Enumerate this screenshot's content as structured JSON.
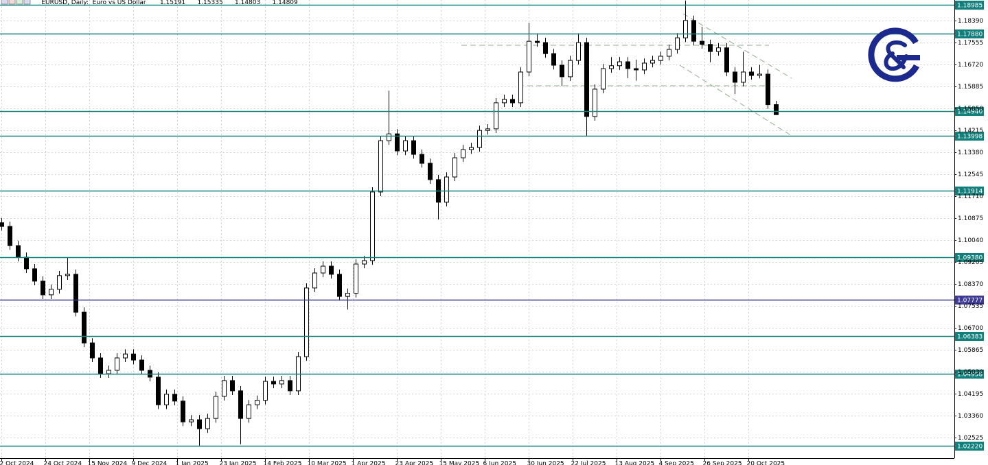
{
  "chart_data": {
    "type": "candlestick",
    "title": "EURUSD, Daily:  Euro vs US Dollar",
    "x": [
      0,
      3,
      6,
      9,
      12,
      15,
      18,
      21,
      24,
      27,
      30,
      33,
      36,
      39,
      42,
      45,
      48,
      51,
      54,
      57,
      60,
      63,
      66,
      69,
      72,
      75,
      78,
      81,
      84,
      87,
      90,
      93,
      96,
      99,
      102,
      105,
      108,
      111,
      114,
      117,
      120,
      123,
      126,
      129,
      132,
      135,
      138,
      141,
      144,
      147,
      150,
      153,
      156,
      159,
      162,
      165,
      168,
      171,
      174,
      177,
      180,
      183,
      186,
      189,
      192,
      195,
      198,
      201,
      204,
      207,
      210,
      213,
      216,
      219,
      222,
      225,
      228,
      231,
      234,
      237,
      240,
      243,
      246,
      249,
      252,
      255,
      258,
      261,
      264,
      267,
      270,
      273,
      276,
      279,
      282
    ],
    "open": [
      1.107,
      1.1056,
      1.0983,
      1.0939,
      1.0895,
      1.0848,
      1.0796,
      1.0817,
      1.0869,
      1.0874,
      1.073,
      1.0613,
      1.0556,
      1.0496,
      1.0509,
      1.0556,
      1.0571,
      1.0548,
      1.0509,
      1.0483,
      1.0378,
      1.0418,
      1.0392,
      1.0313,
      1.0321,
      1.0287,
      1.0326,
      1.041,
      1.047,
      1.0431,
      1.0326,
      1.0378,
      1.0395,
      1.0467,
      1.0457,
      1.047,
      1.0431,
      1.0561,
      1.0822,
      1.0879,
      1.0905,
      1.0874,
      1.079,
      1.0802,
      1.0913,
      1.0926,
      1.1187,
      1.1382,
      1.1408,
      1.1343,
      1.1382,
      1.133,
      1.1296,
      1.1234,
      1.1148,
      1.1244,
      1.1317,
      1.1348,
      1.1356,
      1.1421,
      1.1427,
      1.1526,
      1.1539,
      1.1526,
      1.1643,
      1.176,
      1.1755,
      1.1713,
      1.1669,
      1.1625,
      1.1687,
      1.1755,
      1.1474,
      1.1578,
      1.1656,
      1.1667,
      1.1682,
      1.1656,
      1.1651,
      1.1677,
      1.1687,
      1.1703,
      1.1729,
      1.1773,
      1.1839,
      1.176,
      1.1748,
      1.1721,
      1.1735,
      1.1643,
      1.1604,
      1.1643,
      1.163,
      1.1635,
      1.15191
    ],
    "high": [
      1.1088,
      1.1074,
      1.1001,
      1.0957,
      1.0913,
      1.0866,
      1.0835,
      1.0887,
      1.0937,
      1.0892,
      1.0748,
      1.0631,
      1.0574,
      1.0527,
      1.0574,
      1.0589,
      1.0589,
      1.0566,
      1.0527,
      1.0501,
      1.0436,
      1.0436,
      1.041,
      1.0339,
      1.0339,
      1.0344,
      1.0428,
      1.0488,
      1.0488,
      1.0449,
      1.0396,
      1.0413,
      1.0485,
      1.0485,
      1.0488,
      1.0488,
      1.0579,
      1.084,
      1.0897,
      1.0923,
      1.0923,
      1.0892,
      1.082,
      1.0931,
      1.0944,
      1.1205,
      1.14,
      1.1572,
      1.1426,
      1.14,
      1.14,
      1.1348,
      1.1314,
      1.1252,
      1.1262,
      1.1335,
      1.1366,
      1.1374,
      1.1439,
      1.1445,
      1.1544,
      1.1557,
      1.1557,
      1.1661,
      1.183,
      1.179,
      1.1773,
      1.1731,
      1.1687,
      1.1705,
      1.179,
      1.1773,
      1.1596,
      1.1674,
      1.17,
      1.17,
      1.17,
      1.169,
      1.1695,
      1.1705,
      1.1721,
      1.1747,
      1.1791,
      1.1915,
      1.1857,
      1.1815,
      1.1766,
      1.1753,
      1.1753,
      1.1661,
      1.172,
      1.1661,
      1.167,
      1.1653,
      1.15335
    ],
    "low": [
      1.104,
      1.0967,
      1.0923,
      1.0879,
      1.0832,
      1.078,
      1.078,
      1.0801,
      1.0853,
      1.0714,
      1.0597,
      1.054,
      1.048,
      1.048,
      1.0493,
      1.054,
      1.0532,
      1.0493,
      1.0467,
      1.0362,
      1.0362,
      1.0376,
      1.0297,
      1.0297,
      1.0222,
      1.0271,
      1.031,
      1.0394,
      1.0415,
      1.0228,
      1.031,
      1.0362,
      1.0379,
      1.0441,
      1.0441,
      1.0415,
      1.0415,
      1.0545,
      1.0806,
      1.0863,
      1.0858,
      1.0774,
      1.074,
      1.0786,
      1.0897,
      1.091,
      1.1171,
      1.1366,
      1.1327,
      1.1327,
      1.1314,
      1.128,
      1.1218,
      1.1082,
      1.1132,
      1.1228,
      1.1301,
      1.1332,
      1.134,
      1.1405,
      1.1411,
      1.151,
      1.151,
      1.151,
      1.1627,
      1.1739,
      1.1697,
      1.1653,
      1.159,
      1.1609,
      1.1671,
      1.14,
      1.1458,
      1.1562,
      1.164,
      1.1651,
      1.162,
      1.161,
      1.1635,
      1.1661,
      1.1671,
      1.1687,
      1.1713,
      1.1757,
      1.1744,
      1.1732,
      1.168,
      1.1705,
      1.1627,
      1.156,
      1.1588,
      1.1614,
      1.1619,
      1.1503,
      1.14803
    ],
    "close": [
      1.1056,
      1.0983,
      1.0939,
      1.0895,
      1.0848,
      1.0796,
      1.0817,
      1.0869,
      1.0874,
      1.073,
      1.0613,
      1.0556,
      1.0496,
      1.0509,
      1.0556,
      1.0571,
      1.0548,
      1.0509,
      1.0483,
      1.0378,
      1.0418,
      1.0392,
      1.0313,
      1.0321,
      1.0287,
      1.0326,
      1.041,
      1.047,
      1.0431,
      1.0326,
      1.0378,
      1.0395,
      1.0467,
      1.0457,
      1.047,
      1.0431,
      1.0561,
      1.0822,
      1.0879,
      1.0905,
      1.0874,
      1.079,
      1.0802,
      1.0913,
      1.0926,
      1.1187,
      1.1382,
      1.1408,
      1.1343,
      1.1382,
      1.133,
      1.1296,
      1.1234,
      1.1148,
      1.1244,
      1.1317,
      1.1348,
      1.1356,
      1.1421,
      1.1427,
      1.1526,
      1.1539,
      1.1526,
      1.1643,
      1.176,
      1.1755,
      1.1713,
      1.1669,
      1.1625,
      1.1687,
      1.1755,
      1.1474,
      1.1578,
      1.1656,
      1.1667,
      1.1682,
      1.1656,
      1.1651,
      1.1677,
      1.1687,
      1.1703,
      1.1729,
      1.1773,
      1.1839,
      1.176,
      1.1748,
      1.1721,
      1.1735,
      1.1643,
      1.1604,
      1.1643,
      1.163,
      1.1635,
      1.1519,
      1.14809
    ],
    "up_color": "#ffffff",
    "down_color": "#000000",
    "outline_color": "#000000",
    "xlim": [
      -0.5,
      347
    ],
    "ylim": [
      1.01751,
      1.19168
    ],
    "grid": true,
    "yticks": [
      {
        "value": 1.1839,
        "label": "1.18390"
      },
      1.17555,
      {
        "value": 1.1672,
        "label": "1.16720"
      },
      1.15885,
      {
        "value": 1.1505,
        "label": "1.15050"
      },
      1.14215,
      {
        "value": 1.1338,
        "label": "1.13380"
      },
      1.12545,
      {
        "value": 1.1171,
        "label": "1.11710"
      },
      1.10875,
      {
        "value": 1.1004,
        "label": "1.10040"
      },
      1.09205,
      {
        "value": 1.0837,
        "label": "1.08370"
      },
      1.07535,
      {
        "value": 1.067,
        "label": "1.06700"
      },
      1.05865,
      {
        "value": 1.0503,
        "label": "1.05030"
      },
      1.04195,
      {
        "value": 1.0336,
        "label": "1.03360"
      },
      1.02525
    ],
    "xticks": [
      {
        "value": 0,
        "label": "2 Oct 2024"
      },
      {
        "value": 16,
        "label": "24 Oct 2024"
      },
      {
        "value": 32,
        "label": "15 Nov 2024"
      },
      {
        "value": 48,
        "label": "9 Dec 2024"
      },
      {
        "value": 64,
        "label": "1 Jan 2025"
      },
      {
        "value": 80,
        "label": "23 Jan 2025"
      },
      {
        "value": 96,
        "label": "14 Feb 2025"
      },
      {
        "value": 112,
        "label": "10 Mar 2025"
      },
      {
        "value": 128,
        "label": "1 Apr 2025"
      },
      {
        "value": 144,
        "label": "23 Apr 2025"
      },
      {
        "value": 160,
        "label": "15 May 2025"
      },
      {
        "value": 176,
        "label": "6 Jun 2025"
      },
      {
        "value": 192,
        "label": "30 Jun 2025"
      },
      {
        "value": 208,
        "label": "22 Jul 2025"
      },
      {
        "value": 224,
        "label": "13 Aug 2025"
      },
      {
        "value": 240,
        "label": "4 Sep 2025"
      },
      {
        "value": 256,
        "label": "26 Sep 2025"
      },
      {
        "value": 272,
        "label": "20 Oct 2025"
      }
    ],
    "levels": [
      {
        "value": 1.18985,
        "color": "#11807d"
      },
      {
        "value": 1.1788,
        "label": "1.17880",
        "color": "#11807d"
      },
      {
        "value": 1.1494,
        "label": "1.14940",
        "color": "#11807d"
      },
      {
        "value": 1.13998,
        "color": "#11807d"
      },
      {
        "value": 1.11914,
        "color": "#11807d"
      },
      {
        "value": 1.0938,
        "label": "1.09380",
        "color": "#11807d"
      },
      {
        "value": 1.07777,
        "color": "#3f3a96"
      },
      {
        "value": 1.06383,
        "color": "#11807d"
      },
      {
        "value": 1.04958,
        "color": "#11807d"
      },
      {
        "value": 1.0222,
        "label": "1.02220",
        "color": "#11807d"
      }
    ]
  }
}
